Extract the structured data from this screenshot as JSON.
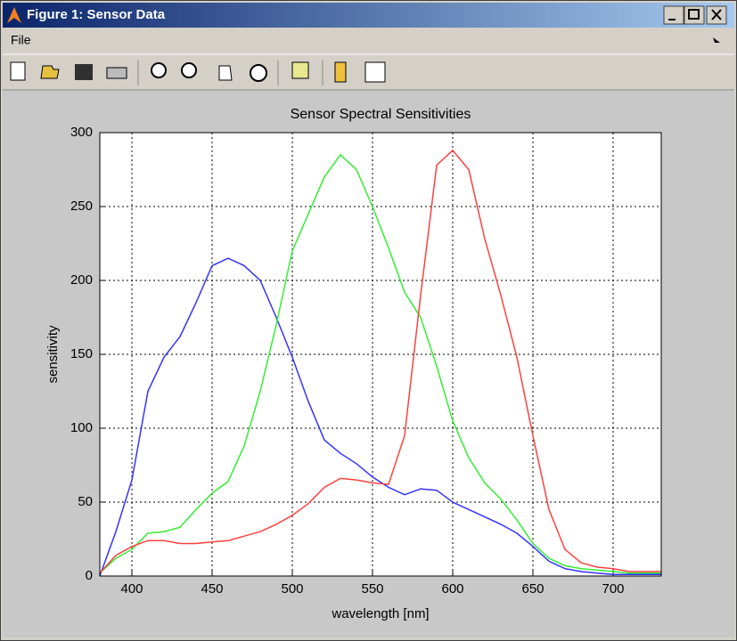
{
  "window": {
    "title": "Figure 1: Sensor Data",
    "menu": [
      "File"
    ]
  },
  "chart_data": {
    "type": "line",
    "title": "Sensor Spectral Sensitivities",
    "x_label": "wavelength [nm]",
    "y_label": "sensitivity",
    "x": [
      380,
      390,
      400,
      410,
      420,
      430,
      440,
      450,
      460,
      470,
      480,
      490,
      500,
      510,
      520,
      530,
      540,
      550,
      560,
      570,
      580,
      590,
      600,
      610,
      620,
      630,
      640,
      650,
      660,
      670,
      680,
      690,
      700,
      710,
      720,
      730
    ],
    "series": [
      {
        "name": "blue",
        "color": "#3333ff",
        "values": [
          0,
          30,
          65,
          125,
          148,
          162,
          185,
          210,
          215,
          210,
          200,
          175,
          148,
          118,
          92,
          83,
          76,
          67,
          60,
          55,
          59,
          58,
          50,
          45,
          40,
          35,
          29,
          20,
          10,
          5,
          3,
          2,
          1,
          1,
          1,
          1
        ]
      },
      {
        "name": "green",
        "color": "#33ee33",
        "values": [
          2,
          12,
          18,
          29,
          30,
          33,
          45,
          56,
          64,
          88,
          125,
          170,
          220,
          245,
          270,
          285,
          275,
          250,
          222,
          192,
          175,
          142,
          105,
          80,
          63,
          52,
          38,
          22,
          12,
          7,
          5,
          4,
          3,
          2,
          2,
          2
        ]
      },
      {
        "name": "red",
        "color": "#ff4040",
        "values": [
          2,
          14,
          20,
          24,
          24,
          22,
          22,
          23,
          24,
          27,
          30,
          35,
          41,
          49,
          60,
          66,
          65,
          63,
          62,
          95,
          190,
          278,
          288,
          275,
          228,
          190,
          148,
          95,
          45,
          18,
          9,
          6,
          5,
          3,
          3,
          3
        ]
      }
    ],
    "xlim": [
      380,
      730
    ],
    "xticks": [
      400,
      450,
      500,
      550,
      600,
      650,
      700
    ],
    "ylim": [
      0,
      300
    ],
    "yticks": [
      0,
      50,
      100,
      150,
      200,
      250,
      300
    ],
    "grid": true
  }
}
